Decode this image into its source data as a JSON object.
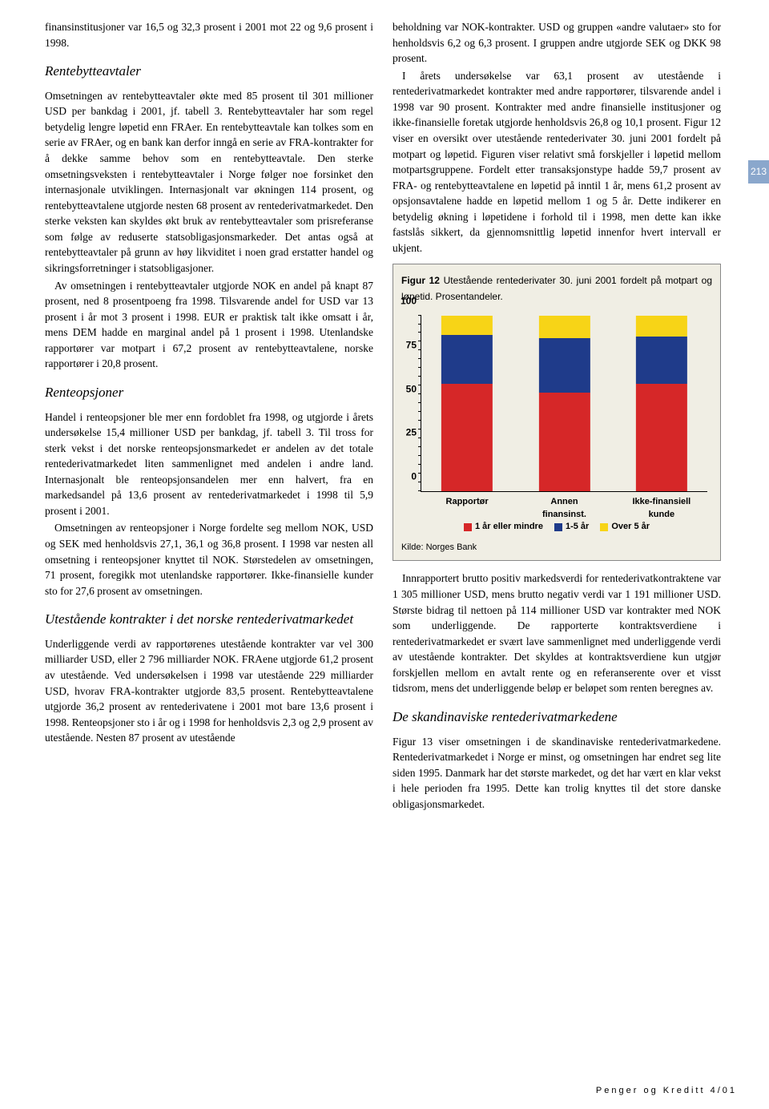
{
  "sidebar": {
    "page_number": "213"
  },
  "footer": {
    "text": "Penger og Kreditt 4/01"
  },
  "left": {
    "intro": "finansinstitusjoner var 16,5 og 32,3 prosent i 2001 mot 22 og 9,6 prosent i 1998.",
    "s1_title": "Rentebytteavtaler",
    "p1": "Omsetningen av rentebytteavtaler økte med 85 prosent til 301 millioner USD per bankdag i 2001, jf. tabell 3. Rentebytteavtaler har som regel betydelig lengre løpetid enn FRAer. En rentebytteavtale kan tolkes som en serie av FRAer, og en bank kan derfor inngå en serie av FRA-kontrakter for å dekke samme behov som en rentebytteavtale. Den sterke omsetningsveksten i rentebytteavtaler i Norge følger noe forsinket den internasjonale utviklingen. Internasjonalt var økningen 114 prosent, og rentebytteavtalene utgjorde nesten 68 prosent av rentederivatmarkedet. Den sterke veksten kan skyldes økt bruk av rentebytteavtaler som prisreferanse som følge av reduserte statsobligasjonsmarkeder. Det antas også at rentebytteavtaler på grunn av høy likviditet i noen grad erstatter handel og sikringsforretninger i statsobligasjoner.",
    "p2": "Av omsetningen i rentebytteavtaler utgjorde NOK en andel på knapt 87 prosent, ned 8 prosentpoeng fra 1998. Tilsvarende andel for USD var 13 prosent i år mot 3 prosent i 1998. EUR er praktisk talt ikke omsatt i år, mens DEM hadde en marginal andel på 1 prosent i 1998. Utenlandske rapportører var motpart i 67,2 prosent av rentebytteavtalene, norske rapportører i 20,8 prosent.",
    "s2_title": "Renteopsjoner",
    "p3": "Handel i renteopsjoner ble mer enn fordoblet fra 1998, og utgjorde i årets undersøkelse 15,4 millioner USD per bankdag, jf. tabell 3. Til tross for sterk vekst i det norske renteopsjonsmarkedet er andelen av det totale rentederivatmarkedet liten sammenlignet med andelen i andre land. Internasjonalt ble renteopsjonsandelen mer enn halvert, fra en markedsandel på 13,6 prosent av rentederivatmarkedet i 1998 til 5,9 prosent i 2001.",
    "p4": "Omsetningen av renteopsjoner i Norge fordelte seg mellom NOK, USD og SEK med henholdsvis 27,1, 36,1 og 36,8 prosent. I 1998 var nesten all omsetning i renteopsjoner knyttet til NOK. Størstedelen av omsetningen, 71 prosent, foregikk mot utenlandske rapportører. Ikke-finansielle kunder sto for 27,6 prosent av omsetningen.",
    "s3_title": "Utestående kontrakter i det norske rentederivatmarkedet",
    "p5": "Underliggende verdi av rapportørenes utestående kontrakter var vel 300 milliarder USD, eller 2 796 milliarder NOK. FRAene utgjorde 61,2 prosent av utestående. Ved undersøkelsen i 1998 var utestående 229 milliarder USD, hvorav FRA-kontrakter utgjorde 83,5 prosent. Rentebytteavtalene utgjorde 36,2 prosent av rentederivatene i 2001 mot bare 13,6 prosent i 1998. Renteopsjoner sto i år og i 1998 for henholdsvis 2,3 og 2,9 prosent av utestående. Nesten 87 prosent av utestående"
  },
  "right": {
    "p0": "beholdning var NOK-kontrakter. USD og gruppen «andre valutaer» sto for henholdsvis 6,2 og 6,3 prosent. I gruppen andre utgjorde SEK og DKK 98 prosent.",
    "p1": "I årets undersøkelse var 63,1 prosent av utestående i rentederivatmarkedet kontrakter med andre rapportører, tilsvarende andel i 1998 var 90 prosent. Kontrakter med andre finansielle institusjoner og ikke-finansielle foretak utgjorde henholdsvis 26,8 og 10,1 prosent. Figur 12 viser en oversikt over utestående rentederivater 30. juni 2001 fordelt på motpart og løpetid. Figuren viser relativt små forskjeller i løpetid mellom motpartsgruppene. Fordelt etter transaksjonstype hadde 59,7 prosent av FRA- og rentebytteavtalene en løpetid på inntil 1 år, mens 61,2 prosent av opsjonsavtalene hadde en løpetid mellom 1 og 5 år. Dette indikerer en betydelig økning i løpetidene i forhold til i 1998, men dette kan ikke fastslås sikkert, da gjennomsnittlig løpetid innenfor hvert intervall er ukjent.",
    "p2": "Innrapportert brutto positiv markedsverdi for rentederivatkontraktene var 1 305 millioner USD, mens brutto negativ verdi var 1 191 millioner USD. Største bidrag til nettoen på 114 millioner USD var kontrakter med NOK som underliggende. De rapporterte kontraktsverdiene i rentederivatmarkedet er svært lave sammenlignet med underliggende verdi av utestående kontrakter. Det skyldes at kontraktsverdiene kun utgjør forskjellen mellom en avtalt rente og en referanserente over et visst tidsrom, mens det underliggende beløp er beløpet som renten beregnes av.",
    "s4_title": "De skandinaviske rentederivatmarkedene",
    "p3": "Figur 13 viser omsetningen i de skandinaviske rentederivatmarkedene. Rentederivatmarkedet i Norge er minst, og omsetningen har endret seg lite siden 1995. Danmark har det største markedet, og det har vært en klar vekst i hele perioden fra 1995. Dette kan trolig knyttes til det store danske obligasjonsmarkedet."
  },
  "chart": {
    "title_bold": "Figur 12",
    "title_rest": " Utestående rentederivater 30. juni 2001 fordelt på motpart og løpetid. Prosentandeler.",
    "type": "stacked-bar",
    "ylim": [
      0,
      100
    ],
    "ytick_step": 25,
    "yticks": [
      "0",
      "25",
      "50",
      "75",
      "100"
    ],
    "categories": [
      "Rapportør",
      "Annen\nfinansinst.",
      "Ikke-finansiell\nkunde"
    ],
    "series": [
      {
        "name": "1 år eller mindre",
        "color": "#d62728"
      },
      {
        "name": "1-5 år",
        "color": "#1f3b8a"
      },
      {
        "name": "Over 5 år",
        "color": "#f7d417"
      }
    ],
    "stacks": [
      [
        61,
        28,
        11
      ],
      [
        56,
        31,
        13
      ],
      [
        61,
        27,
        12
      ]
    ],
    "bar_width_pct": 18,
    "bar_positions_pct": [
      16,
      50,
      84
    ],
    "background_color": "#f0eee4",
    "axis_color": "#000000",
    "label_fontsize": 12,
    "source": "Kilde: Norges Bank"
  }
}
